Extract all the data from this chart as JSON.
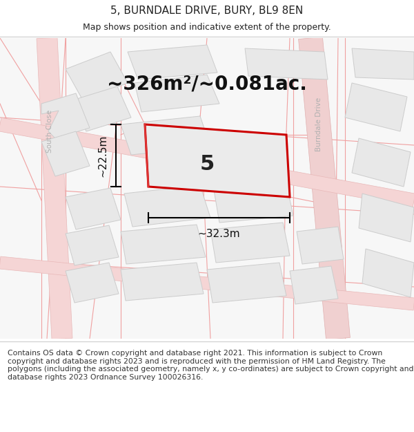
{
  "title_line1": "5, BURNDALE DRIVE, BURY, BL9 8EN",
  "title_line2": "Map shows position and indicative extent of the property.",
  "area_label": "~326m²/~0.081ac.",
  "label_number": "5",
  "dim_width": "~32.3m",
  "dim_height": "~22.5m",
  "footer_text": "Contains OS data © Crown copyright and database right 2021. This information is subject to Crown copyright and database rights 2023 and is reproduced with the permission of HM Land Registry. The polygons (including the associated geometry, namely x, y co-ordinates) are subject to Crown copyright and database rights 2023 Ordnance Survey 100026316.",
  "bg_color": "#f7f7f7",
  "building_fill": "#e8e8e8",
  "building_edge": "#cccccc",
  "road_fill": "#f5d0d0",
  "road_edge": "#e8b0b0",
  "highlight_color": "#cc0000",
  "text_color": "#222222",
  "street_label_color": "#b0b0b0",
  "title_fontsize": 11,
  "subtitle_fontsize": 9,
  "area_fontsize": 20,
  "dim_fontsize": 11,
  "footer_fontsize": 7.8,
  "label5_fontsize": 22
}
